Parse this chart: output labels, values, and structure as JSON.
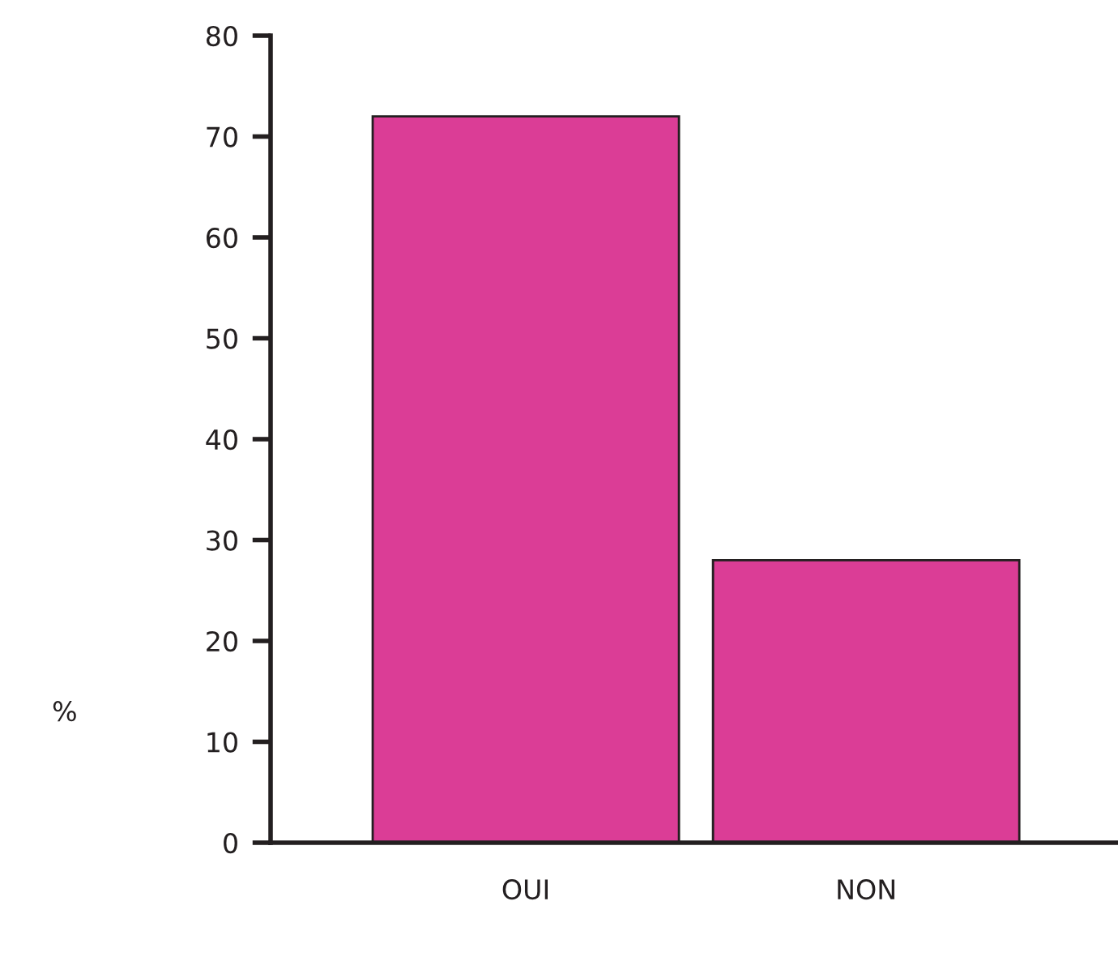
{
  "chart_data": {
    "type": "bar",
    "ylabel": "%",
    "categories": [
      "OUI",
      "NON"
    ],
    "values": [
      72,
      28
    ],
    "color": "#db3d96",
    "ylim": [
      0,
      80
    ],
    "yticks": [
      0,
      10,
      20,
      30,
      40,
      50,
      60,
      70,
      80
    ],
    "grid": false
  }
}
